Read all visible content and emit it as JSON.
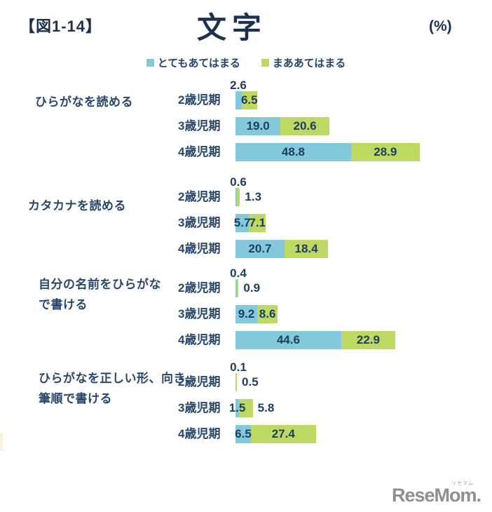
{
  "header": {
    "figure_label": "【図1-14】",
    "title": "文字",
    "unit": "(%)"
  },
  "legend": {
    "items": [
      {
        "label": "とてもあてはまる",
        "color": "#84c8dc"
      },
      {
        "label": "まああてはまる",
        "color": "#bdd964"
      }
    ]
  },
  "colors": {
    "blue": "#84c8dc",
    "green": "#bdd964",
    "text_navy": "#1d3f61",
    "logo_gray": "#8f8f8f"
  },
  "logo": {
    "text": "ReseMom.",
    "ruby": "リセマム"
  },
  "chart_data": {
    "type": "bar",
    "orientation": "horizontal",
    "stacked": true,
    "unit": "%",
    "title": "文字",
    "legend_position": "top-center",
    "series_names": [
      "とてもあてはまる",
      "まああてはまる"
    ],
    "age_categories": [
      "2歳児期",
      "3歳児期",
      "4歳児期"
    ],
    "xlim": [
      0,
      100
    ],
    "groups": [
      {
        "label_lines": [
          "ひらがなを読める"
        ],
        "rows": [
          {
            "age": "2歳児期",
            "blue": 2.6,
            "green": 6.5,
            "blue_label_above": true,
            "green_label": "center"
          },
          {
            "age": "3歳児期",
            "blue": 19.0,
            "green": 20.6,
            "green_label": "center"
          },
          {
            "age": "4歳児期",
            "blue": 48.8,
            "green": 28.9,
            "green_label": "center"
          }
        ]
      },
      {
        "label_lines": [
          "カタカナを読める"
        ],
        "rows": [
          {
            "age": "2歳児期",
            "blue": 0.6,
            "green": 1.3,
            "blue_label_above": true,
            "green_label": "right"
          },
          {
            "age": "3歳児期",
            "blue": 5.7,
            "green": 7.1,
            "green_label": "center"
          },
          {
            "age": "4歳児期",
            "blue": 20.7,
            "green": 18.4,
            "green_label": "center"
          }
        ]
      },
      {
        "label_lines": [
          "自分の名前をひらがな",
          "で書ける"
        ],
        "rows": [
          {
            "age": "2歳児期",
            "blue": 0.4,
            "green": 0.9,
            "blue_label_above": true,
            "green_label": "right"
          },
          {
            "age": "3歳児期",
            "blue": 9.2,
            "green": 8.6,
            "green_label": "center"
          },
          {
            "age": "4歳児期",
            "blue": 44.6,
            "green": 22.9,
            "green_label": "center"
          }
        ]
      },
      {
        "label_lines": [
          "ひらがなを正しい形、向き、",
          "筆順で書ける"
        ],
        "rows": [
          {
            "age": "2歳児期",
            "blue": 0.1,
            "green": 0.5,
            "blue_label_above": true,
            "green_label": "right"
          },
          {
            "age": "3歳児期",
            "blue": 1.5,
            "green": 5.8,
            "green_label": "right"
          },
          {
            "age": "4歳児期",
            "blue": 6.5,
            "green": 27.4,
            "green_label": "center"
          }
        ]
      }
    ]
  }
}
